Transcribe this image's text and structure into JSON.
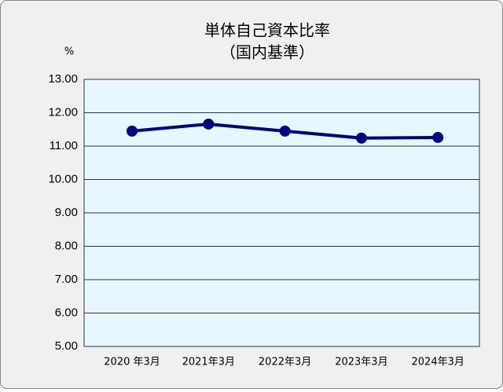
{
  "chart_data": {
    "type": "line",
    "title": "単体自己資本比率",
    "subtitle": "（国内基準）",
    "y_label": "%",
    "categories": [
      "2020 年3月",
      "2021年3月",
      "2022年3月",
      "2023年3月",
      "2024年3月"
    ],
    "values": [
      11.45,
      11.66,
      11.45,
      11.24,
      11.26
    ],
    "color": "#000080",
    "ylim": [
      5,
      13
    ],
    "yticks": [
      {
        "value": 5,
        "label": "5.00"
      },
      {
        "value": 6,
        "label": "6.00"
      },
      {
        "value": 7,
        "label": "7.00"
      },
      {
        "value": 8,
        "label": "8.00"
      },
      {
        "value": 9,
        "label": "9.00"
      },
      {
        "value": 10,
        "label": "10.00"
      },
      {
        "value": 11,
        "label": "11.00"
      },
      {
        "value": 12,
        "label": "12.00"
      },
      {
        "value": 13,
        "label": "13.00"
      }
    ],
    "grid": true
  }
}
